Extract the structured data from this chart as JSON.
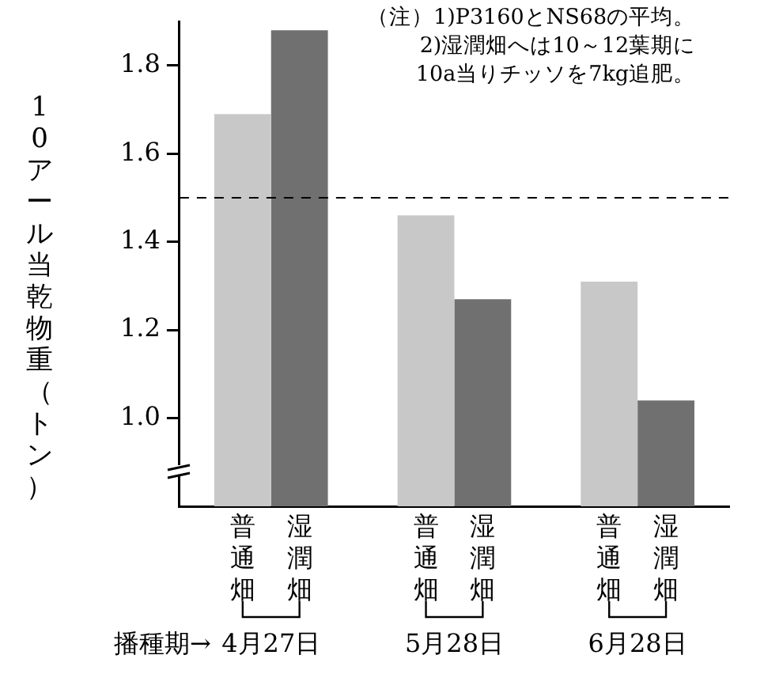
{
  "chart_data": {
    "type": "bar",
    "ylabel": "10アール当乾物重（トン）",
    "xlabel": "播種期→",
    "categories": [
      "4月27日",
      "5月28日",
      "6月28日"
    ],
    "series": [
      {
        "name": "普通畑",
        "color": "#c8c8c8",
        "values": [
          1.69,
          1.46,
          1.31
        ]
      },
      {
        "name": "湿潤畑",
        "color": "#707070",
        "values": [
          1.88,
          1.27,
          1.04
        ]
      }
    ],
    "ylim": [
      0.8,
      1.9
    ],
    "yticks": [
      {
        "value": 1.0,
        "label": "1.0"
      },
      1.2,
      1.4,
      1.6,
      1.8
    ],
    "grid": false,
    "legend": false,
    "ref_lines": [
      {
        "axis": "y",
        "value": 1.5,
        "line_style": "dashed"
      }
    ],
    "annotations": [
      "（注）1)P3160とNS68の平均。",
      "2)湿潤畑へは10～12葉期に",
      "10a当りチッソを7kg追肥。"
    ]
  }
}
